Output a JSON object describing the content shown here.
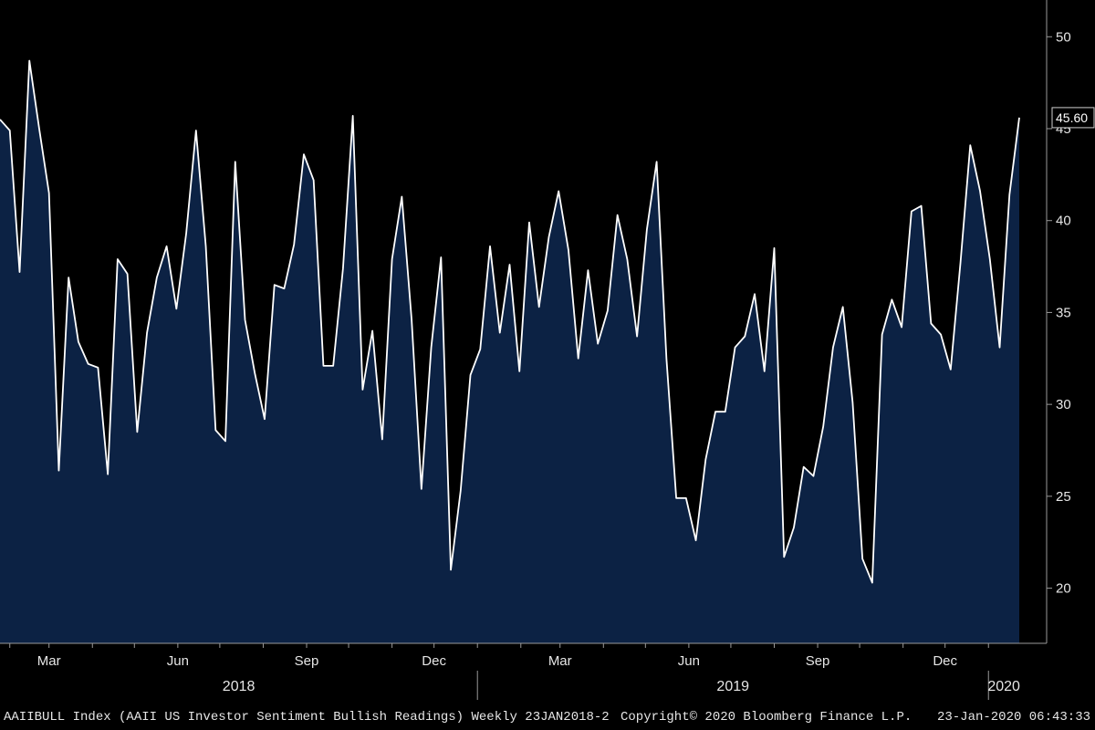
{
  "chart_data": {
    "type": "area",
    "title": "",
    "xlabel": "",
    "ylabel": "",
    "ylim": [
      17,
      52
    ],
    "y_ticks": [
      20,
      25,
      30,
      35,
      40,
      45,
      50
    ],
    "grid": false,
    "x_start": "2018-01-25",
    "x_end": "2020-01-23",
    "month_ticks": [
      {
        "label": "Mar",
        "date": "2018-03-01"
      },
      {
        "label": "Jun",
        "date": "2018-06-01"
      },
      {
        "label": "Sep",
        "date": "2018-09-01"
      },
      {
        "label": "Dec",
        "date": "2018-12-01"
      },
      {
        "label": "Mar",
        "date": "2019-03-01"
      },
      {
        "label": "Jun",
        "date": "2019-06-01"
      },
      {
        "label": "Sep",
        "date": "2019-09-01"
      },
      {
        "label": "Dec",
        "date": "2019-12-01"
      }
    ],
    "year_labels": [
      {
        "label": "2018",
        "from": "2018-01-25",
        "to": "2019-01-01"
      },
      {
        "label": "2019",
        "from": "2019-01-01",
        "to": "2020-01-01"
      },
      {
        "label": "2020",
        "from": "2020-01-01",
        "to": "2020-01-23"
      }
    ],
    "series": [
      {
        "values": [
          45.5,
          44.9,
          37.2,
          48.7,
          45.0,
          41.5,
          26.4,
          36.9,
          33.4,
          32.2,
          32.0,
          26.2,
          37.9,
          37.1,
          28.5,
          33.9,
          36.9,
          38.6,
          35.2,
          39.3,
          44.9,
          38.6,
          28.6,
          28.0,
          43.2,
          34.6,
          31.7,
          29.2,
          36.5,
          36.3,
          38.7,
          43.6,
          42.2,
          32.1,
          32.1,
          37.4,
          45.7,
          30.8,
          34.0,
          28.1,
          37.9,
          41.3,
          34.6,
          25.4,
          33.1,
          38.0,
          21.0,
          25.3,
          31.6,
          33.0,
          38.6,
          33.9,
          37.6,
          31.8,
          39.9,
          35.3,
          39.1,
          41.6,
          38.4,
          32.5,
          37.3,
          33.3,
          35.1,
          40.3,
          37.9,
          33.7,
          39.5,
          43.2,
          32.5,
          24.9,
          24.9,
          22.6,
          27.0,
          29.6,
          29.6,
          33.1,
          33.7,
          36.0,
          31.8,
          38.5,
          21.7,
          23.3,
          26.6,
          26.1,
          28.8,
          33.1,
          35.3,
          30.1,
          21.6,
          20.3,
          33.8,
          35.7,
          34.2,
          40.5,
          40.8,
          34.4,
          33.8,
          31.9,
          37.7,
          44.1,
          41.6,
          37.9,
          33.1,
          41.4,
          45.6
        ]
      }
    ],
    "last_value_label": "45.60",
    "colors": {
      "background": "#000000",
      "fill": "#0c2244",
      "line": "#ffffff",
      "axis": "#9a9a9a",
      "text": "#e6e6e6"
    }
  },
  "footer": {
    "index_text": "AAIIBULL Index (AAII US Investor Sentiment Bullish Readings) Weekly 23JAN2018-2",
    "copyright_text": "Copyright© 2020 Bloomberg Finance L.P.",
    "timestamp_text": "23-Jan-2020 06:43:33"
  }
}
